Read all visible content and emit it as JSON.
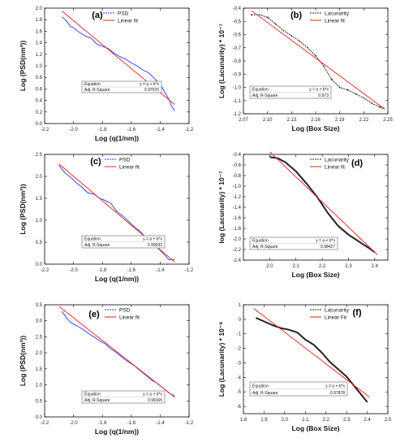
{
  "colors": {
    "fit": "#ff1a1a",
    "psd": "#1e3cff",
    "lac": "#222222",
    "axis": "#000000"
  },
  "chart_data": [
    {
      "type": "line",
      "panel_label": "(a)",
      "xlabel": "Log (q(1/nm))",
      "ylabel": "Log (PSD(nm³))",
      "xlim": [
        -2.2,
        -1.2
      ],
      "ylim": [
        0.0,
        2.0
      ],
      "xticks": [
        -2.2,
        -2.0,
        -1.8,
        -1.6,
        -1.4,
        -1.2
      ],
      "xticklabels": [
        "-2.2",
        "-2.0",
        "-1.8",
        "-1.6",
        "-1.4",
        "-1.2"
      ],
      "yticks": [
        0.0,
        0.2,
        0.4,
        0.6,
        0.8,
        1.0,
        1.2,
        1.4,
        1.6,
        1.8,
        2.0
      ],
      "yticklabels": [
        "0.0",
        "0.2",
        "0.4",
        "0.6",
        "0.8",
        "1.0",
        "1.2",
        "1.4",
        "1.6",
        "1.8",
        "2.0"
      ],
      "legend_position": "top-right",
      "series": [
        {
          "name": "PSD",
          "style": "data-blue",
          "x": [
            -2.08,
            -2.05,
            -2.02,
            -2.0,
            -1.96,
            -1.92,
            -1.88,
            -1.84,
            -1.8,
            -1.76,
            -1.72,
            -1.68,
            -1.64,
            -1.6,
            -1.56,
            -1.52,
            -1.48,
            -1.44,
            -1.4,
            -1.37,
            -1.34,
            -1.32,
            -1.3
          ],
          "y": [
            1.85,
            1.78,
            1.68,
            1.66,
            1.58,
            1.52,
            1.48,
            1.38,
            1.34,
            1.3,
            1.22,
            1.16,
            1.12,
            1.05,
            1.0,
            0.93,
            0.88,
            0.78,
            0.68,
            0.55,
            0.42,
            0.3,
            0.22
          ]
        },
        {
          "name": "Linear fit",
          "style": "fit",
          "x": [
            -2.08,
            -1.3
          ],
          "y": [
            1.95,
            0.33
          ]
        }
      ],
      "equation_box": {
        "row1_label": "Equation",
        "row1_value": "y = a + b*x",
        "row2_label": "Adj. R-Square",
        "row2_value": "0.97076"
      }
    },
    {
      "type": "line",
      "panel_label": "(b)",
      "xlabel": "Log (Box Size)",
      "ylabel": "Log (Lacunarity) * 10⁻⁷",
      "xlim": [
        2.07,
        2.25
      ],
      "ylim": [
        -1.2,
        -0.4
      ],
      "xticks": [
        2.07,
        2.1,
        2.13,
        2.16,
        2.19,
        2.22,
        2.25
      ],
      "xticklabels": [
        "2.07",
        "2.10",
        "2.13",
        "2.16",
        "2.19",
        "2.22",
        "2.25"
      ],
      "yticks": [
        -1.2,
        -1.1,
        -1.0,
        -0.9,
        -0.8,
        -0.7,
        -0.6,
        -0.5,
        -0.4
      ],
      "yticklabels": [
        "-1.2",
        "-1.1",
        "-1.0",
        "-0.9",
        "-0.8",
        "-0.7",
        "-0.6",
        "-0.5",
        "-0.4"
      ],
      "legend_position": "top-right",
      "series": [
        {
          "name": "Lacunarity",
          "style": "data-black",
          "x": [
            2.08,
            2.09,
            2.1,
            2.11,
            2.12,
            2.13,
            2.14,
            2.15,
            2.16,
            2.17,
            2.18,
            2.19,
            2.2,
            2.21,
            2.22,
            2.23,
            2.24,
            2.245
          ],
          "y": [
            -0.45,
            -0.45,
            -0.47,
            -0.52,
            -0.57,
            -0.61,
            -0.65,
            -0.7,
            -0.76,
            -0.84,
            -0.94,
            -1.0,
            -1.02,
            -1.05,
            -1.08,
            -1.12,
            -1.15,
            -1.16
          ]
        },
        {
          "name": "Linear fit",
          "style": "fit",
          "x": [
            2.08,
            2.245
          ],
          "y": [
            -0.42,
            -1.16
          ]
        }
      ],
      "equation_box": {
        "row1_label": "Equation",
        "row1_value": "y = a + b*x",
        "row2_label": "Adj. R-Square",
        "row2_value": "0.973"
      }
    },
    {
      "type": "line",
      "panel_label": "(c)",
      "xlabel": "Log (q(1/nm))",
      "ylabel": "Log (PSD(nm³))",
      "xlim": [
        -2.2,
        -1.2
      ],
      "ylim": [
        0.0,
        2.5
      ],
      "xticks": [
        -2.2,
        -2.0,
        -1.8,
        -1.6,
        -1.4,
        -1.2
      ],
      "xticklabels": [
        "-2.2",
        "-2.0",
        "-1.8",
        "-1.6",
        "-1.4",
        "-1.2"
      ],
      "yticks": [
        0.0,
        0.5,
        1.0,
        1.5,
        2.0,
        2.5
      ],
      "yticklabels": [
        "0.0",
        "0.5",
        "1.0",
        "1.5",
        "2.0",
        "2.5"
      ],
      "legend_position": "top-right",
      "series": [
        {
          "name": "PSD",
          "style": "data-blue",
          "x": [
            -2.1,
            -2.06,
            -2.02,
            -1.98,
            -1.94,
            -1.9,
            -1.86,
            -1.82,
            -1.78,
            -1.74,
            -1.7,
            -1.66,
            -1.62,
            -1.58,
            -1.54,
            -1.5,
            -1.46,
            -1.42,
            -1.38,
            -1.34,
            -1.3
          ],
          "y": [
            2.25,
            2.08,
            1.98,
            1.85,
            1.75,
            1.62,
            1.6,
            1.5,
            1.45,
            1.38,
            1.2,
            1.1,
            0.98,
            0.85,
            0.75,
            0.6,
            0.48,
            0.38,
            0.25,
            0.1,
            0.1
          ]
        },
        {
          "name": "Linear fit",
          "style": "fit",
          "x": [
            -2.1,
            -1.3
          ],
          "y": [
            2.28,
            0.05
          ]
        }
      ],
      "equation_box": {
        "row1_label": "Equation",
        "row1_value": "y = a + b*x",
        "row2_label": "Adj. R-Square",
        "row2_value": "0.99033"
      }
    },
    {
      "type": "line",
      "panel_label": "(d)",
      "xlabel": "Log (Box Size)",
      "ylabel": "log (Lacunarity) * 10⁻⁷",
      "xlim": [
        1.9,
        2.45
      ],
      "ylim": [
        -2.4,
        -0.4
      ],
      "xticks": [
        2.0,
        2.1,
        2.2,
        2.3,
        2.4
      ],
      "xticklabels": [
        "2.0",
        "2.1",
        "2.2",
        "2.3",
        "2.4"
      ],
      "yticks": [
        -2.4,
        -2.2,
        -2.0,
        -1.8,
        -1.6,
        -1.4,
        -1.2,
        -1.0,
        -0.8,
        -0.6,
        -0.4
      ],
      "yticklabels": [
        "-2.4",
        "-2.2",
        "-2.0",
        "-1.8",
        "-1.6",
        "-1.4",
        "-1.2",
        "-1.0",
        "-0.8",
        "-0.6",
        "-0.4"
      ],
      "legend_position": "top-right",
      "series": [
        {
          "name": "Lacunarity",
          "style": "data-black-thick",
          "x": [
            2.0,
            2.03,
            2.06,
            2.1,
            2.14,
            2.18,
            2.22,
            2.26,
            2.3,
            2.34,
            2.38,
            2.4
          ],
          "y": [
            -0.45,
            -0.47,
            -0.55,
            -0.72,
            -0.95,
            -1.2,
            -1.5,
            -1.75,
            -1.92,
            -2.05,
            -2.18,
            -2.25
          ]
        },
        {
          "name": "Linear fit",
          "style": "fit",
          "x": [
            2.0,
            2.41
          ],
          "y": [
            -0.35,
            -2.3
          ]
        }
      ],
      "equation_box": {
        "row1_label": "Equation",
        "row1_value": "y = a + b*x",
        "row2_label": "Adj. R-Square",
        "row2_value": "0.98427"
      }
    },
    {
      "type": "line",
      "panel_label": "(e)",
      "xlabel": "Log (q(1/nm))",
      "ylabel": "Log (PSD(nm³))",
      "xlim": [
        -2.2,
        -1.2
      ],
      "ylim": [
        0.0,
        3.5
      ],
      "xticks": [
        -2.2,
        -2.0,
        -1.8,
        -1.6,
        -1.4,
        -1.2
      ],
      "xticklabels": [
        "-2.2",
        "-2.0",
        "-1.8",
        "-1.6",
        "-1.4",
        "-1.2"
      ],
      "yticks": [
        0.0,
        0.5,
        1.0,
        1.5,
        2.0,
        2.5,
        3.0,
        3.5
      ],
      "yticklabels": [
        "0.0",
        "0.5",
        "1.0",
        "1.5",
        "2.0",
        "2.5",
        "3.0",
        "3.5"
      ],
      "legend_position": "top-right",
      "series": [
        {
          "name": "PSD",
          "style": "data-blue",
          "x": [
            -2.08,
            -2.05,
            -2.02,
            -1.98,
            -1.94,
            -1.9,
            -1.86,
            -1.82,
            -1.78,
            -1.74,
            -1.7,
            -1.66,
            -1.62,
            -1.58,
            -1.54,
            -1.5,
            -1.46,
            -1.42,
            -1.38,
            -1.34,
            -1.3
          ],
          "y": [
            3.3,
            3.1,
            2.95,
            2.85,
            2.75,
            2.62,
            2.5,
            2.38,
            2.28,
            2.12,
            2.0,
            1.85,
            1.72,
            1.6,
            1.45,
            1.3,
            1.15,
            1.05,
            0.9,
            0.75,
            0.65
          ]
        },
        {
          "name": "Linear fit",
          "style": "fit",
          "x": [
            -2.1,
            -1.3
          ],
          "y": [
            3.45,
            0.62
          ]
        }
      ],
      "equation_box": {
        "row1_label": "Equation",
        "row1_value": "y = a + b*x",
        "row2_label": "Adj. R-Square",
        "row2_value": "0.99165"
      }
    },
    {
      "type": "line",
      "panel_label": "(f)",
      "xlabel": "Log (Box Size)",
      "ylabel": "Log (Lacunarity) * 10⁻⁸",
      "xlim": [
        1.8,
        2.5
      ],
      "ylim": [
        -6.5,
        1.0
      ],
      "xticks": [
        1.8,
        1.9,
        2.0,
        2.1,
        2.2,
        2.3,
        2.4,
        2.5
      ],
      "xticklabels": [
        "1.8",
        "1.9",
        "2.0",
        "2.1",
        "2.2",
        "2.3",
        "2.4",
        "2.5"
      ],
      "yticks": [
        -6,
        -5,
        -4,
        -3,
        -2,
        -1,
        0,
        1
      ],
      "yticklabels": [
        "-6",
        "-5",
        "-4",
        "-3",
        "-2",
        "-1",
        "0",
        "1"
      ],
      "legend_position": "top-right",
      "series": [
        {
          "name": "Lacunarity",
          "style": "data-black-thick",
          "x": [
            1.86,
            1.9,
            1.94,
            1.98,
            2.02,
            2.06,
            2.1,
            2.14,
            2.18,
            2.22,
            2.26,
            2.3,
            2.34,
            2.38,
            2.4
          ],
          "y": [
            0.1,
            -0.15,
            -0.4,
            -0.6,
            -0.72,
            -0.9,
            -1.4,
            -1.75,
            -2.3,
            -2.95,
            -3.45,
            -3.95,
            -4.65,
            -5.35,
            -5.7
          ]
        },
        {
          "name": "Linear Fit",
          "style": "fit",
          "x": [
            1.85,
            2.41
          ],
          "y": [
            0.75,
            -5.35
          ]
        }
      ],
      "equation_box": {
        "row1_label": "Equation",
        "row1_value": "y = a + b*x",
        "row2_label": "Adj. R-Square",
        "row2_value": "0.97878"
      }
    }
  ]
}
